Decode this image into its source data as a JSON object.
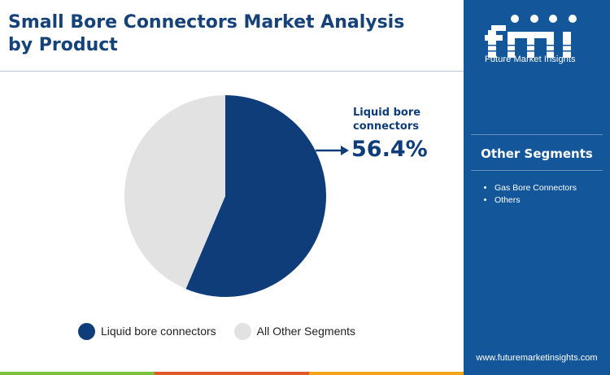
{
  "title": "Small Bore Connectors Market Analysis by Product",
  "callout": {
    "label": "Liquid bore connectors",
    "value": "56.4%"
  },
  "chart_data": {
    "type": "pie",
    "title": "Small Bore Connectors Market Analysis by Product",
    "slices": [
      {
        "label": "Liquid bore connectors",
        "value": 56.4,
        "color": "#0f3d7a"
      },
      {
        "label": "All Other Segments",
        "value": 43.6,
        "color": "#e2e2e2"
      }
    ],
    "legend_placement": "bottom",
    "annotations": [
      {
        "text": "Liquid bore connectors 56.4%",
        "target": "Liquid bore connectors"
      }
    ]
  },
  "legend": [
    {
      "label": "Liquid bore connectors",
      "color": "#0f3d7a"
    },
    {
      "label": "All Other Segments",
      "color": "#e2e2e2"
    }
  ],
  "brand": {
    "logo_letters": "fmi",
    "name": "Future Market Insights",
    "website": "www.futuremarketinsights.com"
  },
  "sidebar": {
    "title": "Other Segments",
    "items": [
      "Gas Bore Connectors",
      "Others"
    ]
  },
  "colors": {
    "primary": "#0f3d7a",
    "panel": "#13569a",
    "other": "#e2e2e2",
    "bottom_bar": [
      "#7fbf3f",
      "#e2582b",
      "#f2a51a"
    ]
  }
}
